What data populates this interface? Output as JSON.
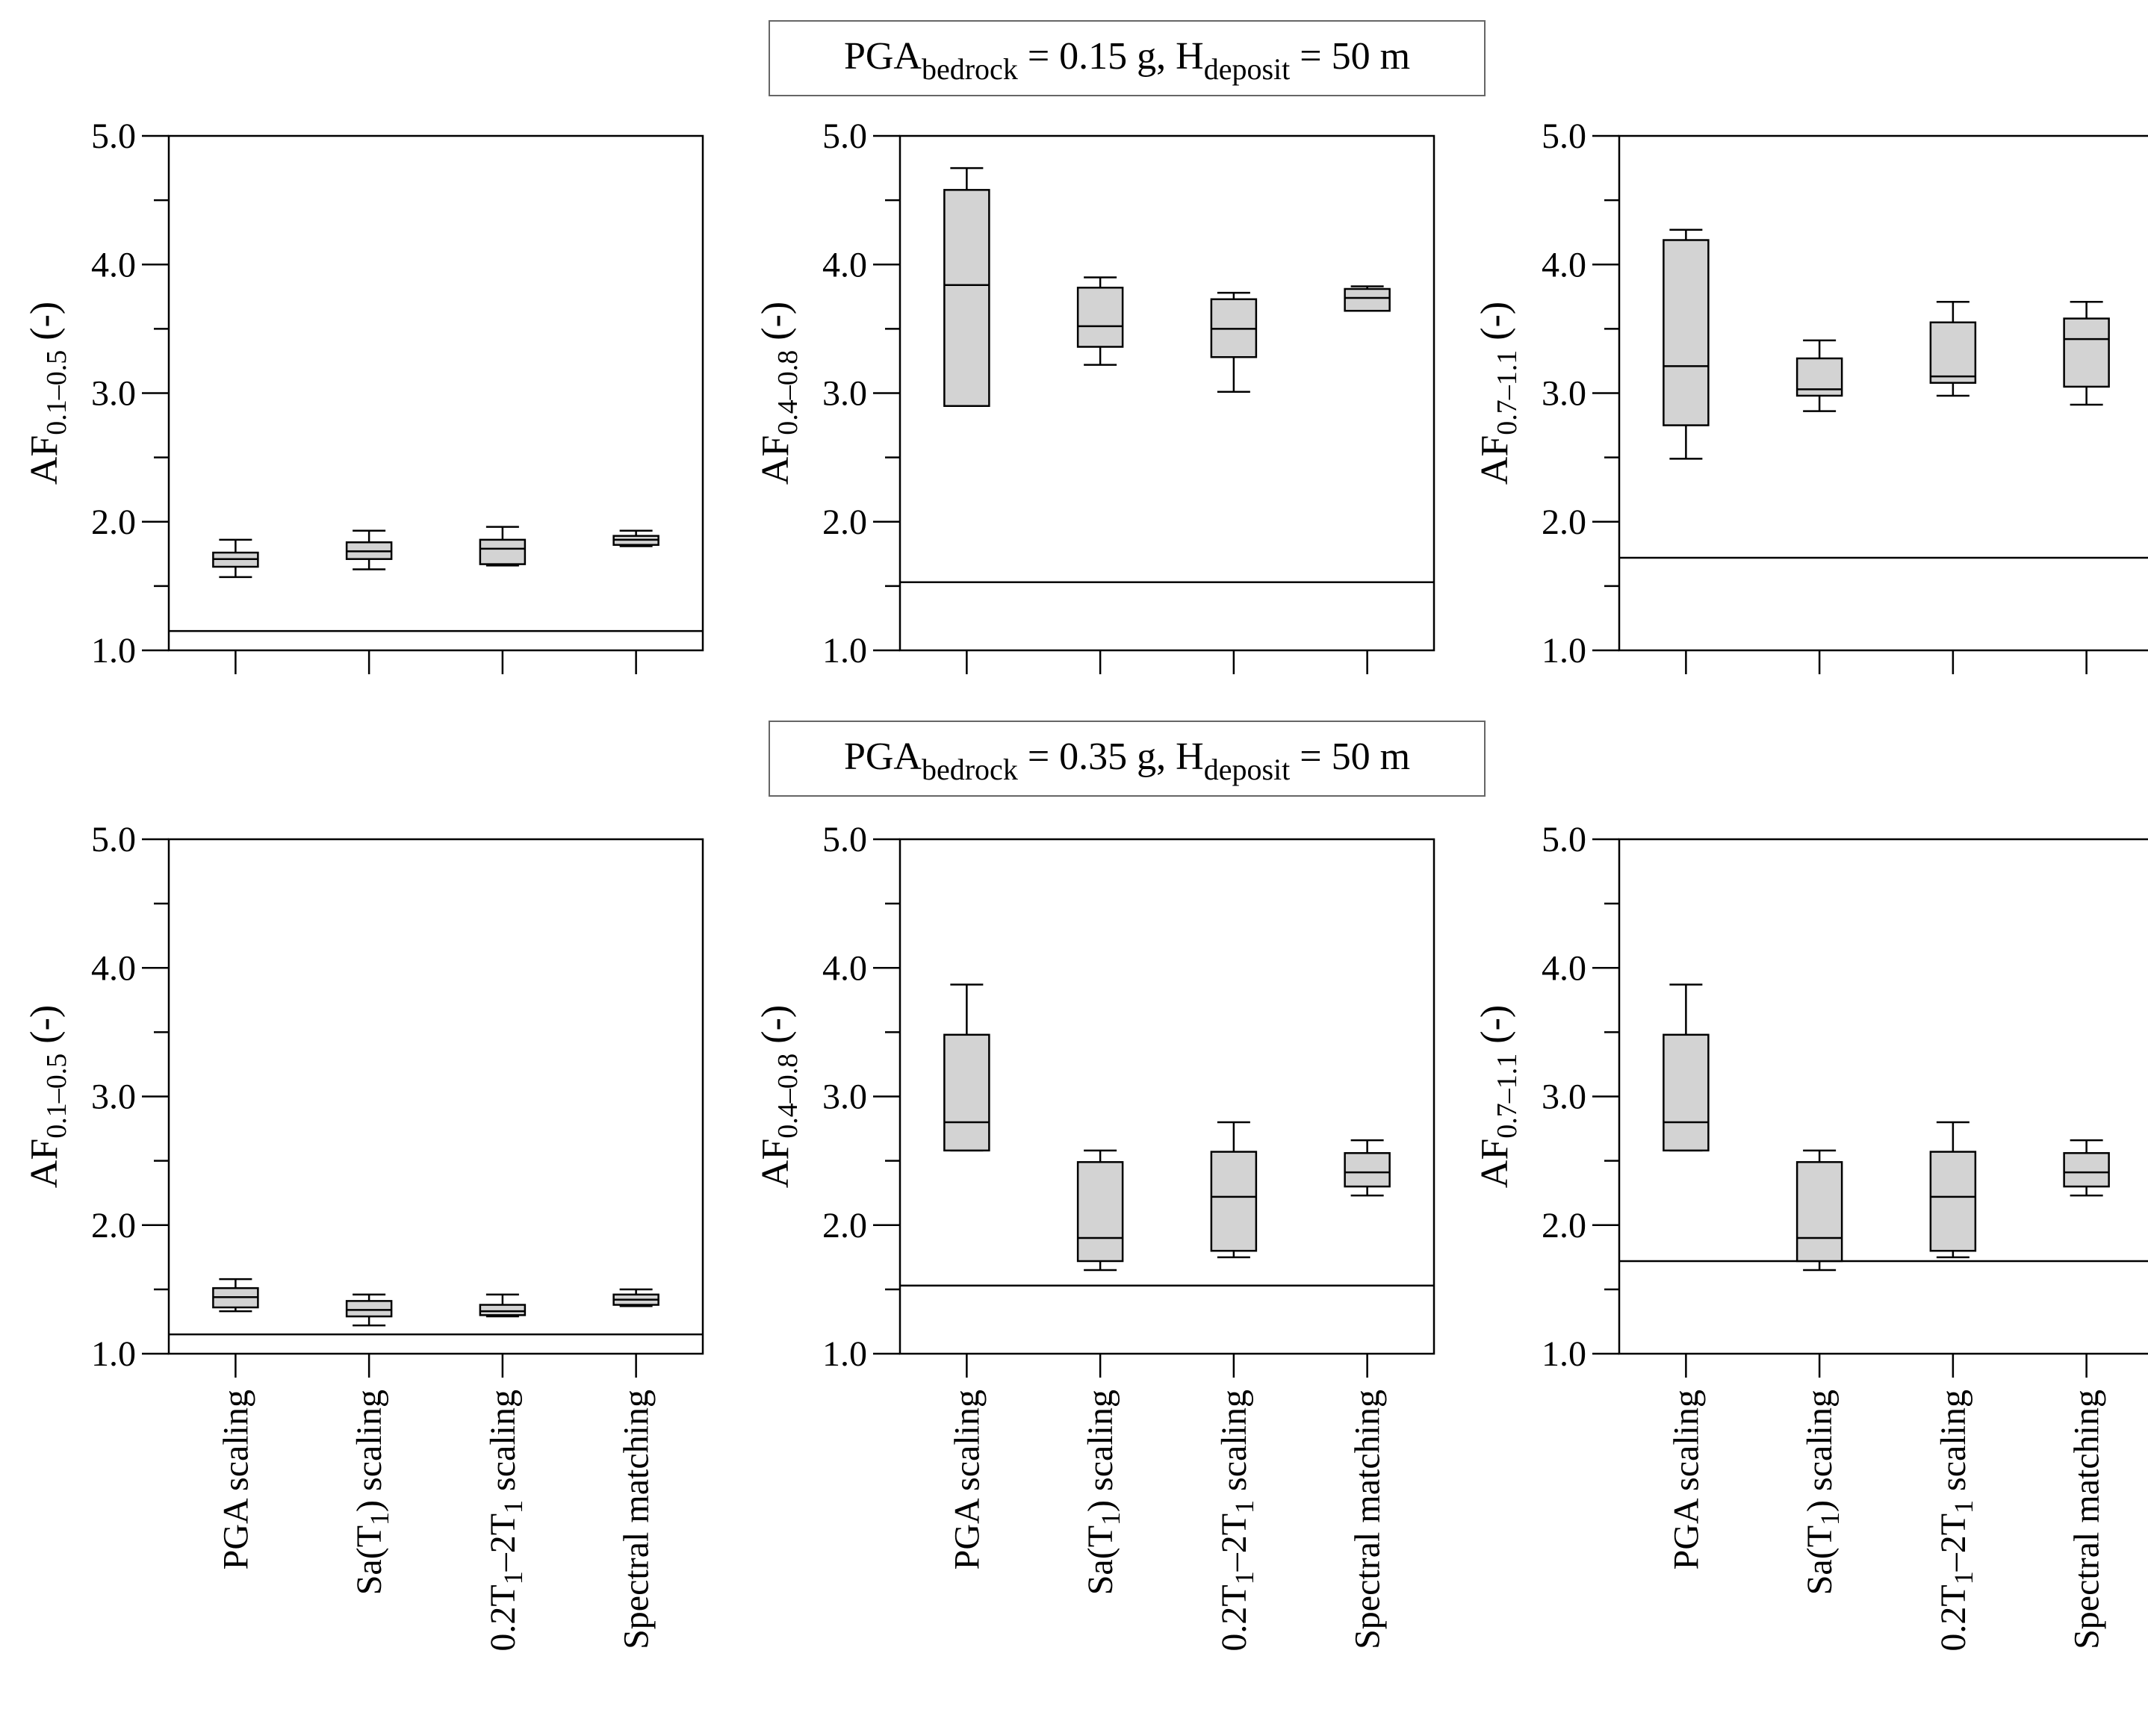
{
  "figure": {
    "group_labels": [
      {
        "main": "PGA",
        "sub1": "bedrock",
        "mid": " = 0.15 g, H",
        "sub2": "deposit",
        "tail": " = 50 m"
      },
      {
        "main": "PGA",
        "sub1": "bedrock",
        "mid": " = 0.35 g, H",
        "sub2": "deposit",
        "tail": " = 50 m"
      }
    ]
  },
  "chart_data": [
    {
      "type": "box",
      "row": 0,
      "col": 0,
      "ylabel": {
        "main": "AF",
        "sub": "0.1–0.5",
        "tail": " (-)"
      },
      "ylim": [
        1.0,
        5.0
      ],
      "yticks": [
        "1.0",
        "2.0",
        "3.0",
        "4.0",
        "5.0"
      ],
      "reference_line": 1.15,
      "categories": [
        "PGA scaling",
        "Sa(T1) scaling",
        "0.2T1–2T1 scaling",
        "Spectral matching"
      ],
      "boxes": [
        {
          "min": 1.57,
          "q1": 1.65,
          "median": 1.71,
          "q3": 1.76,
          "max": 1.86
        },
        {
          "min": 1.63,
          "q1": 1.71,
          "median": 1.77,
          "q3": 1.84,
          "max": 1.93
        },
        {
          "min": 1.66,
          "q1": 1.67,
          "median": 1.79,
          "q3": 1.86,
          "max": 1.96
        },
        {
          "min": 1.81,
          "q1": 1.82,
          "median": 1.86,
          "q3": 1.89,
          "max": 1.93
        }
      ]
    },
    {
      "type": "box",
      "row": 0,
      "col": 1,
      "ylabel": {
        "main": "AF",
        "sub": "0.4–0.8",
        "tail": " (-)"
      },
      "ylim": [
        1.0,
        5.0
      ],
      "yticks": [
        "1.0",
        "2.0",
        "3.0",
        "4.0",
        "5.0"
      ],
      "reference_line": 1.53,
      "categories": [
        "PGA scaling",
        "Sa(T1) scaling",
        "0.2T1–2T1 scaling",
        "Spectral matching"
      ],
      "boxes": [
        {
          "min": 2.9,
          "q1": 2.9,
          "median": 3.84,
          "q3": 4.58,
          "max": 4.75
        },
        {
          "min": 3.22,
          "q1": 3.36,
          "median": 3.52,
          "q3": 3.82,
          "max": 3.9
        },
        {
          "min": 3.01,
          "q1": 3.28,
          "median": 3.5,
          "q3": 3.73,
          "max": 3.78
        },
        {
          "min": 3.64,
          "q1": 3.64,
          "median": 3.74,
          "q3": 3.81,
          "max": 3.83
        }
      ]
    },
    {
      "type": "box",
      "row": 0,
      "col": 2,
      "ylabel": {
        "main": "AF",
        "sub": "0.7–1.1",
        "tail": " (-)"
      },
      "ylim": [
        1.0,
        5.0
      ],
      "yticks": [
        "1.0",
        "2.0",
        "3.0",
        "4.0",
        "5.0"
      ],
      "reference_line": 1.72,
      "categories": [
        "PGA scaling",
        "Sa(T1) scaling",
        "0.2T1–2T1 scaling",
        "Spectral matching"
      ],
      "boxes": [
        {
          "min": 2.49,
          "q1": 2.75,
          "median": 3.21,
          "q3": 4.19,
          "max": 4.27
        },
        {
          "min": 2.86,
          "q1": 2.98,
          "median": 3.03,
          "q3": 3.27,
          "max": 3.41
        },
        {
          "min": 2.98,
          "q1": 3.08,
          "median": 3.13,
          "q3": 3.55,
          "max": 3.71
        },
        {
          "min": 2.91,
          "q1": 3.05,
          "median": 3.42,
          "q3": 3.58,
          "max": 3.71
        }
      ]
    },
    {
      "type": "box",
      "row": 1,
      "col": 0,
      "ylabel": {
        "main": "AF",
        "sub": "0.1–0.5",
        "tail": " (-)"
      },
      "ylim": [
        1.0,
        5.0
      ],
      "yticks": [
        "1.0",
        "2.0",
        "3.0",
        "4.0",
        "5.0"
      ],
      "reference_line": 1.15,
      "categories": [
        "PGA scaling",
        "Sa(T1) scaling",
        "0.2T1–2T1 scaling",
        "Spectral matching"
      ],
      "boxes": [
        {
          "min": 1.33,
          "q1": 1.36,
          "median": 1.44,
          "q3": 1.51,
          "max": 1.58
        },
        {
          "min": 1.22,
          "q1": 1.29,
          "median": 1.34,
          "q3": 1.41,
          "max": 1.46
        },
        {
          "min": 1.29,
          "q1": 1.3,
          "median": 1.33,
          "q3": 1.38,
          "max": 1.46
        },
        {
          "min": 1.37,
          "q1": 1.38,
          "median": 1.42,
          "q3": 1.46,
          "max": 1.5
        }
      ]
    },
    {
      "type": "box",
      "row": 1,
      "col": 1,
      "ylabel": {
        "main": "AF",
        "sub": "0.4–0.8",
        "tail": " (-)"
      },
      "ylim": [
        1.0,
        5.0
      ],
      "yticks": [
        "1.0",
        "2.0",
        "3.0",
        "4.0",
        "5.0"
      ],
      "reference_line": 1.53,
      "categories": [
        "PGA scaling",
        "Sa(T1) scaling",
        "0.2T1–2T1 scaling",
        "Spectral matching"
      ],
      "boxes": [
        {
          "min": 2.58,
          "q1": 2.58,
          "median": 2.8,
          "q3": 3.48,
          "max": 3.87
        },
        {
          "min": 1.65,
          "q1": 1.72,
          "median": 1.9,
          "q3": 2.49,
          "max": 2.58
        },
        {
          "min": 1.75,
          "q1": 1.8,
          "median": 2.22,
          "q3": 2.57,
          "max": 2.8
        },
        {
          "min": 2.23,
          "q1": 2.3,
          "median": 2.41,
          "q3": 2.56,
          "max": 2.66
        }
      ]
    },
    {
      "type": "box",
      "row": 1,
      "col": 2,
      "ylabel": {
        "main": "AF",
        "sub": "0.7–1.1",
        "tail": " (-)"
      },
      "ylim": [
        1.0,
        5.0
      ],
      "yticks": [
        "1.0",
        "2.0",
        "3.0",
        "4.0",
        "5.0"
      ],
      "reference_line": 1.72,
      "categories": [
        "PGA scaling",
        "Sa(T1) scaling",
        "0.2T1–2T1 scaling",
        "Spectral matching"
      ],
      "boxes": [
        {
          "min": 2.58,
          "q1": 2.58,
          "median": 2.8,
          "q3": 3.48,
          "max": 3.87
        },
        {
          "min": 1.65,
          "q1": 1.72,
          "median": 1.9,
          "q3": 2.49,
          "max": 2.58
        },
        {
          "min": 1.75,
          "q1": 1.8,
          "median": 2.22,
          "q3": 2.57,
          "max": 2.8
        },
        {
          "min": 2.23,
          "q1": 2.3,
          "median": 2.41,
          "q3": 2.56,
          "max": 2.66
        }
      ]
    }
  ],
  "x_category_labels": [
    {
      "name": "pga",
      "parts": [
        [
          "PGA scaling",
          false
        ]
      ]
    },
    {
      "name": "sa-t1",
      "parts": [
        [
          "Sa(T",
          false
        ],
        [
          "1",
          true
        ],
        [
          ") scaling",
          false
        ]
      ]
    },
    {
      "name": "02t1-2t1",
      "parts": [
        [
          "0.2T",
          false
        ],
        [
          "1",
          true
        ],
        [
          "–2T",
          false
        ],
        [
          "1",
          true
        ],
        [
          " scaling",
          false
        ]
      ]
    },
    {
      "name": "spectral",
      "parts": [
        [
          "Spectral matching",
          false
        ]
      ]
    }
  ]
}
